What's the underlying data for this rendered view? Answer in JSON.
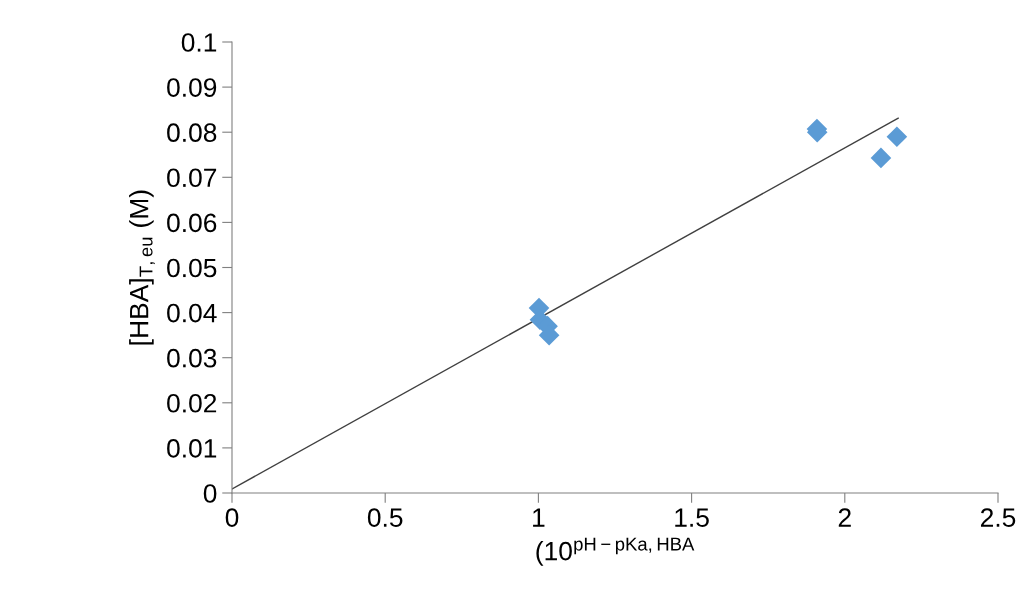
{
  "chart_data": {
    "type": "scatter",
    "xlabel": "(10$^{pH−pKa,HBA}$",
    "ylabel": "[HBA]$_{T,eu}$ (M)",
    "series": [
      {
        "color": "#5b9bd5",
        "marker": "diamond",
        "x": [
          1.002,
          1.005,
          1.03,
          1.035,
          1.909,
          1.91,
          2.118,
          2.17
        ],
        "values": [
          0.041,
          0.0384,
          0.037,
          0.035,
          0.0807,
          0.08,
          0.0743,
          0.079
        ]
      },
      {
        "type": "line",
        "color": "#404040",
        "marker": "none",
        "line_style": "solid",
        "x": [
          0,
          2.174
        ],
        "values": [
          0.0009,
          0.0831
        ]
      }
    ],
    "xlim": [
      0,
      2.5
    ],
    "xticks": [
      0,
      0.5,
      1,
      1.5,
      2,
      2.5
    ],
    "ylim": [
      0,
      0.1
    ],
    "yticks": [
      0,
      0.01,
      0.02,
      0.03,
      0.04,
      0.05,
      0.06,
      0.07,
      0.08,
      0.09,
      0.1
    ],
    "grid": false,
    "legend": false
  }
}
